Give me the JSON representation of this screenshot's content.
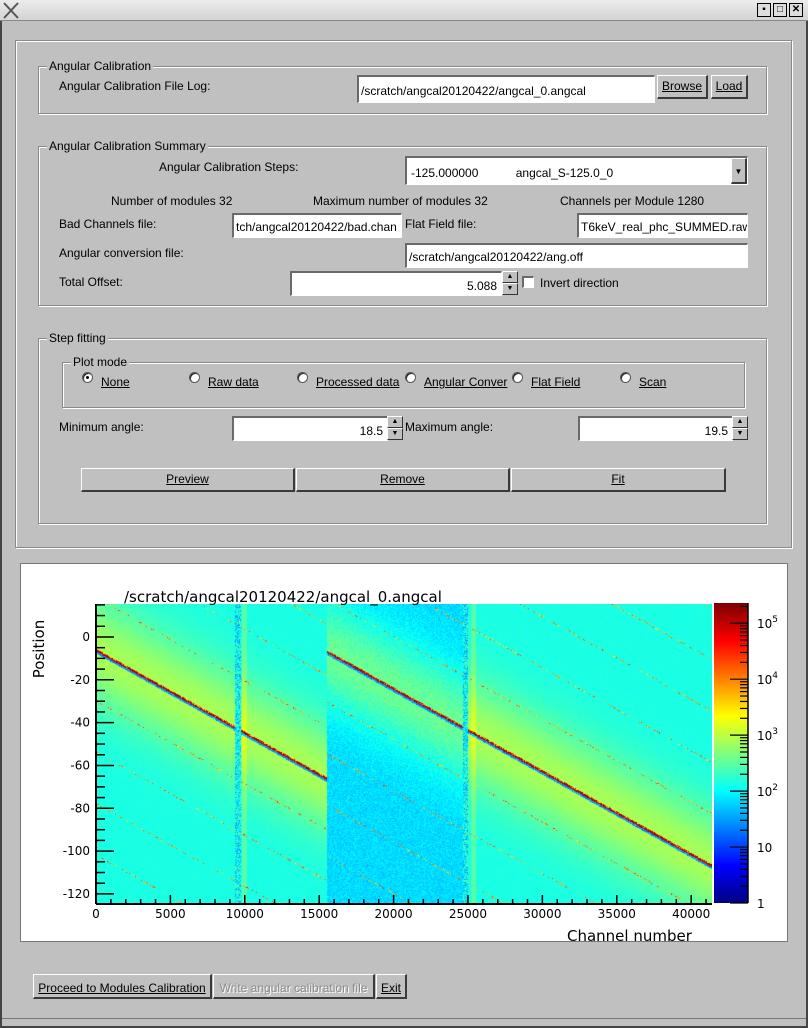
{
  "window": {
    "title_icon": "x-logo-icon",
    "controls": [
      "minimize-icon",
      "maximize-icon",
      "close-icon"
    ]
  },
  "angular_calibration": {
    "group_label": "Angular Calibration",
    "file_log_label": "Angular Calibration File Log:",
    "file_log_value": "/scratch/angcal20120422/angcal_0.angcal",
    "browse_label": "Browse",
    "load_label": "Load"
  },
  "summary": {
    "group_label": "Angular Calibration Summary",
    "steps_label": "Angular Calibration Steps:",
    "steps_value_angle": "-125.000000",
    "steps_value_name": "angcal_S-125.0_0",
    "num_modules": "Number of modules 32",
    "max_modules": "Maximum number of modules 32",
    "channels_per_module": "Channels per Module 1280",
    "bad_channels_label": "Bad Channels file:",
    "bad_channels_value": "tch/angcal20120422/bad.chan",
    "flat_field_label": "Flat Field file:",
    "flat_field_value": "T6keV_real_phc_SUMMED.raw",
    "angconv_label": "Angular conversion file:",
    "angconv_value": "/scratch/angcal20120422/ang.off",
    "total_offset_label": "Total Offset:",
    "total_offset_value": "5.088",
    "invert_label": "Invert direction",
    "invert_checked": false
  },
  "step_fitting": {
    "group_label": "Step fitting",
    "plot_mode_label": "Plot mode",
    "plot_modes": [
      {
        "label": "None",
        "selected": true
      },
      {
        "label": "Raw data",
        "selected": false
      },
      {
        "label": "Processed data",
        "selected": false
      },
      {
        "label": "Angular Conver",
        "selected": false
      },
      {
        "label": "Flat Field",
        "selected": false
      },
      {
        "label": "Scan",
        "selected": false
      }
    ],
    "min_angle_label": "Minimum angle:",
    "min_angle_value": "18.5",
    "max_angle_label": "Maximum angle:",
    "max_angle_value": "19.5",
    "preview_label": "Preview",
    "remove_label": "Remove",
    "fit_label": "Fit"
  },
  "plot": {
    "title": "/scratch/angcal20120422/angcal_0.angcal",
    "xlabel": "Channel number",
    "ylabel": "Position",
    "x_ticks": [
      "0",
      "5000",
      "10000",
      "15000",
      "20000",
      "25000",
      "30000",
      "35000",
      "40000"
    ],
    "y_ticks": [
      "0",
      "-20",
      "-40",
      "-60",
      "-80",
      "-100",
      "-120"
    ],
    "colorbar_ticks": [
      {
        "base": "1",
        "exp": ""
      },
      {
        "base": "10",
        "exp": ""
      },
      {
        "base": "10",
        "exp": "2"
      },
      {
        "base": "10",
        "exp": "3"
      },
      {
        "base": "10",
        "exp": "4"
      },
      {
        "base": "10",
        "exp": "5"
      }
    ]
  },
  "chart_data": {
    "type": "heatmap",
    "title": "/scratch/angcal20120422/angcal_0.angcal",
    "xlabel": "Channel number",
    "ylabel": "Position",
    "xlim": [
      0,
      41400
    ],
    "ylim": [
      -124.7,
      15.4
    ],
    "colorscale": "jet",
    "color_scale_log": true,
    "zlim": [
      1,
      230000
    ],
    "grid": false
  },
  "bottom": {
    "proceed_label": "Proceed to Modules Calibration",
    "write_label": "Write angular calibration file",
    "exit_label": "Exit"
  }
}
